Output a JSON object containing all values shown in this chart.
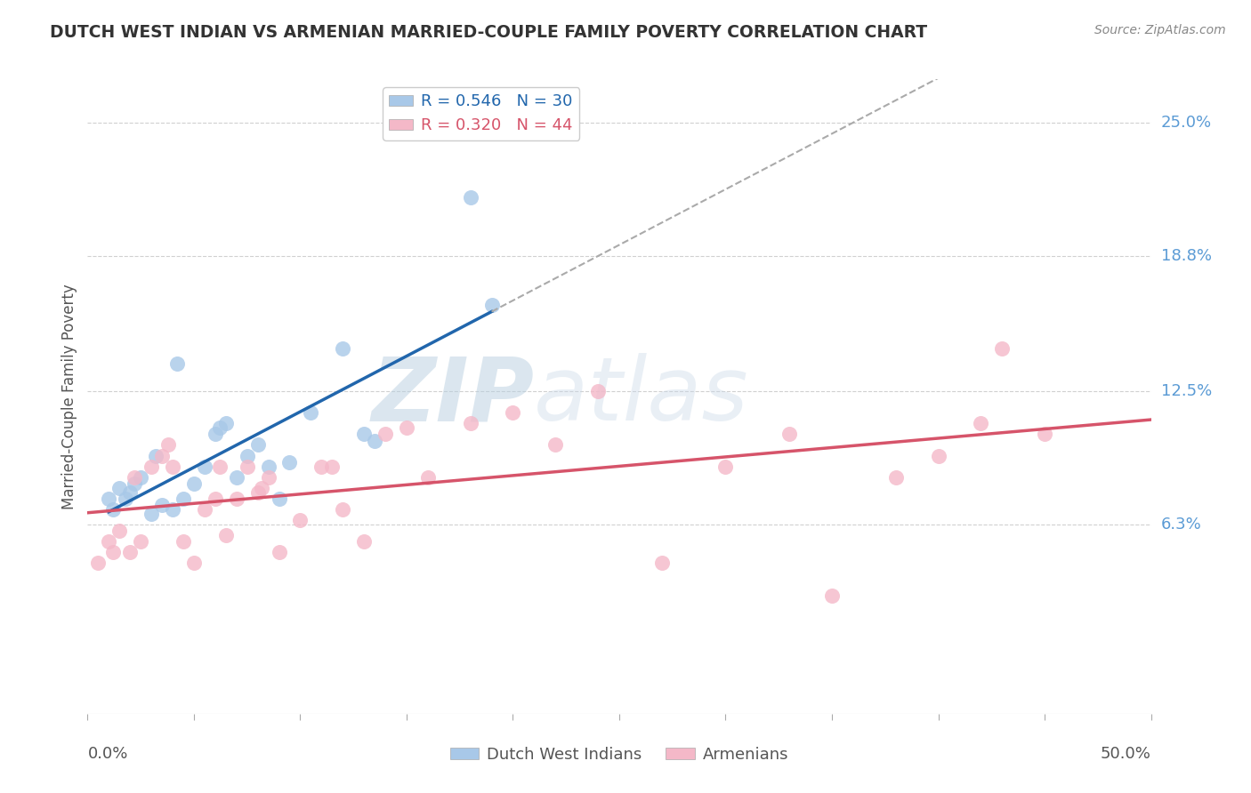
{
  "title": "DUTCH WEST INDIAN VS ARMENIAN MARRIED-COUPLE FAMILY POVERTY CORRELATION CHART",
  "source": "Source: ZipAtlas.com",
  "ylabel": "Married-Couple Family Poverty",
  "xlim": [
    0.0,
    50.0
  ],
  "ylim": [
    -2.5,
    27.0
  ],
  "plot_ylim": [
    -2.5,
    27.0
  ],
  "ytick_vals": [
    6.3,
    12.5,
    18.8,
    25.0
  ],
  "ytick_labels": [
    "6.3%",
    "12.5%",
    "18.8%",
    "25.0%"
  ],
  "xtick_vals": [
    0.0,
    5.0,
    10.0,
    15.0,
    20.0,
    25.0,
    30.0,
    35.0,
    40.0,
    45.0,
    50.0
  ],
  "series1_color": "#a8c8e8",
  "series2_color": "#f4b8c8",
  "trend1_color": "#2166ac",
  "trend2_color": "#d6546a",
  "legend_label1": "Dutch West Indians",
  "legend_label2": "Armenians",
  "R1": "0.546",
  "N1": "30",
  "R2": "0.320",
  "N2": "44",
  "watermark_text": "ZIPatlas",
  "background_color": "#ffffff",
  "dwi_x": [
    1.0,
    1.5,
    2.0,
    2.5,
    3.0,
    3.5,
    4.0,
    4.5,
    5.0,
    5.5,
    6.0,
    6.5,
    7.0,
    7.5,
    8.0,
    9.0,
    9.5,
    10.5,
    12.0,
    13.0,
    18.0,
    19.0,
    1.2,
    1.8,
    2.2,
    3.2,
    4.2,
    6.2,
    8.5,
    13.5
  ],
  "dwi_y": [
    7.5,
    8.0,
    7.8,
    8.5,
    6.8,
    7.2,
    7.0,
    7.5,
    8.2,
    9.0,
    10.5,
    11.0,
    8.5,
    9.5,
    10.0,
    7.5,
    9.2,
    11.5,
    14.5,
    10.5,
    21.5,
    16.5,
    7.0,
    7.5,
    8.2,
    9.5,
    13.8,
    10.8,
    9.0,
    10.2
  ],
  "arm_x": [
    0.5,
    1.0,
    1.2,
    1.5,
    2.0,
    2.5,
    3.0,
    3.5,
    4.0,
    4.5,
    5.0,
    5.5,
    6.0,
    6.5,
    7.0,
    7.5,
    8.0,
    8.5,
    9.0,
    10.0,
    11.0,
    12.0,
    13.0,
    14.0,
    16.0,
    18.0,
    20.0,
    22.0,
    24.0,
    27.0,
    30.0,
    33.0,
    35.0,
    38.0,
    40.0,
    42.0,
    43.0,
    45.0,
    2.2,
    3.8,
    6.2,
    8.2,
    11.5,
    15.0
  ],
  "arm_y": [
    4.5,
    5.5,
    5.0,
    6.0,
    5.0,
    5.5,
    9.0,
    9.5,
    9.0,
    5.5,
    4.5,
    7.0,
    7.5,
    5.8,
    7.5,
    9.0,
    7.8,
    8.5,
    5.0,
    6.5,
    9.0,
    7.0,
    5.5,
    10.5,
    8.5,
    11.0,
    11.5,
    10.0,
    12.5,
    4.5,
    9.0,
    10.5,
    3.0,
    8.5,
    9.5,
    11.0,
    14.5,
    10.5,
    8.5,
    10.0,
    9.0,
    8.0,
    9.0,
    10.8
  ]
}
